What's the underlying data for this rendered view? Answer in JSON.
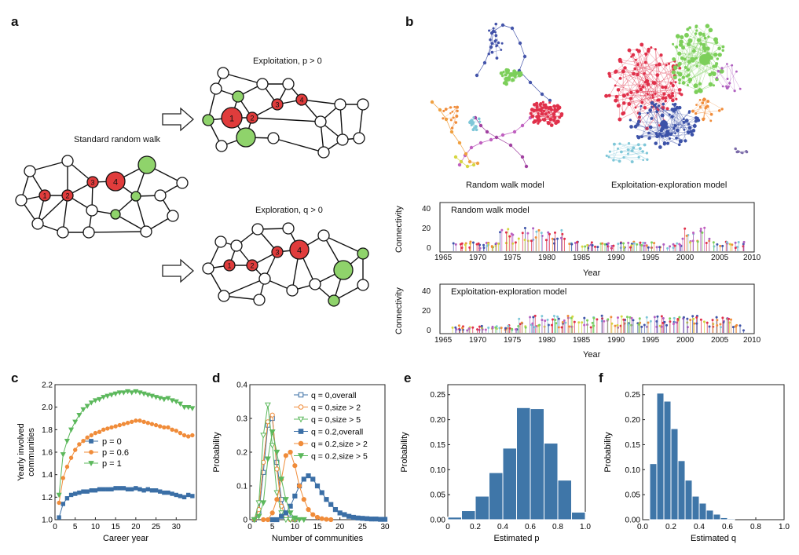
{
  "colors": {
    "red": "#e03c3c",
    "green": "#8fd36b",
    "blue": "#3b6fa6",
    "orange": "#f08c3a",
    "lightgreen": "#5cb85c"
  },
  "panel_a": {
    "letter": "a",
    "standard_label": "Standard random walk",
    "exploitation_label": "Exploitation, p > 0",
    "exploration_label": "Exploration, q > 0",
    "node_numbers": [
      "1",
      "2",
      "3",
      "4"
    ]
  },
  "panel_b": {
    "letter": "b",
    "net_label_left": "Random walk model",
    "net_label_right": "Exploitation-exploration model",
    "top_plot_title": "Random walk model",
    "bottom_plot_title": "Exploitation-exploration model",
    "ylabel": "Connectivity",
    "xlabel": "Year",
    "yticks": [
      "0",
      "20",
      "40"
    ],
    "xticks": [
      "1965",
      "1970",
      "1975",
      "1980",
      "1985",
      "1990",
      "1995",
      "2000",
      "2005",
      "2010"
    ]
  },
  "chart_data": [
    {
      "panel": "c",
      "type": "line",
      "title": "",
      "xlabel": "Career year",
      "ylabel": "Yearly involved communities",
      "xlim": [
        0,
        35
      ],
      "ylim": [
        1.0,
        2.2
      ],
      "xticks": [
        "0",
        "5",
        "10",
        "15",
        "20",
        "25",
        "30"
      ],
      "yticks": [
        "1.0",
        "1.2",
        "1.4",
        "1.6",
        "1.8",
        "2.0",
        "2.2"
      ],
      "legend_position": "center-left",
      "series": [
        {
          "name": "p = 0",
          "color": "#3b6fa6",
          "marker": "square",
          "x": [
            1,
            2,
            3,
            4,
            5,
            6,
            7,
            8,
            9,
            10,
            11,
            12,
            13,
            14,
            15,
            16,
            17,
            18,
            19,
            20,
            21,
            22,
            23,
            24,
            25,
            26,
            27,
            28,
            29,
            30,
            31,
            32,
            33,
            34
          ],
          "values": [
            1.02,
            1.14,
            1.19,
            1.22,
            1.23,
            1.24,
            1.25,
            1.25,
            1.26,
            1.26,
            1.27,
            1.27,
            1.27,
            1.27,
            1.28,
            1.28,
            1.28,
            1.27,
            1.27,
            1.28,
            1.27,
            1.26,
            1.27,
            1.26,
            1.26,
            1.25,
            1.24,
            1.24,
            1.23,
            1.22,
            1.21,
            1.2,
            1.22,
            1.21
          ]
        },
        {
          "name": "p = 0.6",
          "color": "#f08c3a",
          "marker": "circle",
          "x": [
            1,
            2,
            3,
            4,
            5,
            6,
            7,
            8,
            9,
            10,
            11,
            12,
            13,
            14,
            15,
            16,
            17,
            18,
            19,
            20,
            21,
            22,
            23,
            24,
            25,
            26,
            27,
            28,
            29,
            30,
            31,
            32,
            33,
            34
          ],
          "values": [
            1.15,
            1.37,
            1.47,
            1.55,
            1.62,
            1.67,
            1.7,
            1.73,
            1.75,
            1.77,
            1.78,
            1.8,
            1.81,
            1.82,
            1.83,
            1.84,
            1.85,
            1.86,
            1.87,
            1.88,
            1.88,
            1.87,
            1.86,
            1.85,
            1.84,
            1.83,
            1.82,
            1.82,
            1.8,
            1.79,
            1.77,
            1.75,
            1.74,
            1.75
          ]
        },
        {
          "name": "p = 1",
          "color": "#5cb85c",
          "marker": "triangle-down",
          "x": [
            1,
            2,
            3,
            4,
            5,
            6,
            7,
            8,
            9,
            10,
            11,
            12,
            13,
            14,
            15,
            16,
            17,
            18,
            19,
            20,
            21,
            22,
            23,
            24,
            25,
            26,
            27,
            28,
            29,
            30,
            31,
            32,
            33,
            34
          ],
          "values": [
            1.22,
            1.58,
            1.7,
            1.8,
            1.87,
            1.93,
            1.98,
            2.01,
            2.04,
            2.06,
            2.07,
            2.09,
            2.1,
            2.11,
            2.12,
            2.13,
            2.13,
            2.14,
            2.13,
            2.14,
            2.13,
            2.12,
            2.11,
            2.1,
            2.09,
            2.08,
            2.07,
            2.08,
            2.06,
            2.05,
            2.03,
            2.0,
            2.0,
            1.99
          ]
        }
      ]
    },
    {
      "panel": "d",
      "type": "line",
      "title": "",
      "xlabel": "Number of communities",
      "ylabel": "Probability",
      "xlim": [
        0,
        30
      ],
      "ylim": [
        0,
        0.4
      ],
      "xticks": [
        "0",
        "5",
        "10",
        "15",
        "20",
        "25",
        "30"
      ],
      "yticks": [
        "0",
        "0.1",
        "0.2",
        "0.3",
        "0.4"
      ],
      "legend_position": "top-right",
      "series": [
        {
          "name": "q = 0,overall",
          "color": "#3b6fa6",
          "marker": "open-square",
          "x": [
            1,
            2,
            3,
            4,
            5,
            6,
            7,
            8,
            9,
            10
          ],
          "values": [
            0.0,
            0.02,
            0.14,
            0.28,
            0.3,
            0.17,
            0.06,
            0.02,
            0.005,
            0.0
          ]
        },
        {
          "name": "q = 0,size > 2",
          "color": "#f08c3a",
          "marker": "open-circle",
          "x": [
            1,
            2,
            3,
            4,
            5,
            6,
            7,
            8,
            9,
            10
          ],
          "values": [
            0.0,
            0.03,
            0.17,
            0.29,
            0.31,
            0.15,
            0.04,
            0.01,
            0.0,
            0.0
          ]
        },
        {
          "name": "q = 0,size > 5",
          "color": "#5cb85c",
          "marker": "open-triangle-down",
          "x": [
            1,
            2,
            3,
            4,
            5,
            6,
            7,
            8,
            9,
            10
          ],
          "values": [
            0.0,
            0.05,
            0.25,
            0.34,
            0.22,
            0.08,
            0.02,
            0.0,
            0.0,
            0.0
          ]
        },
        {
          "name": "q = 0.2,overall",
          "color": "#3b6fa6",
          "marker": "square",
          "x": [
            5,
            6,
            7,
            8,
            9,
            10,
            11,
            12,
            13,
            14,
            15,
            16,
            17,
            18,
            19,
            20,
            21,
            22,
            23,
            24,
            25,
            26,
            27,
            28,
            29,
            30
          ],
          "values": [
            0.0,
            0.0,
            0.01,
            0.02,
            0.04,
            0.07,
            0.1,
            0.12,
            0.13,
            0.12,
            0.1,
            0.08,
            0.06,
            0.045,
            0.03,
            0.02,
            0.015,
            0.01,
            0.007,
            0.005,
            0.004,
            0.003,
            0.002,
            0.002,
            0.001,
            0.001
          ]
        },
        {
          "name": "q = 0.2,size > 2",
          "color": "#f08c3a",
          "marker": "circle",
          "x": [
            3,
            4,
            5,
            6,
            7,
            8,
            9,
            10,
            11,
            12,
            13,
            14,
            15,
            16,
            17,
            18
          ],
          "values": [
            0.0,
            0.0,
            0.02,
            0.06,
            0.12,
            0.19,
            0.2,
            0.16,
            0.1,
            0.06,
            0.03,
            0.015,
            0.007,
            0.003,
            0.001,
            0.0
          ]
        },
        {
          "name": "q = 0.2,size > 5",
          "color": "#5cb85c",
          "marker": "triangle-down",
          "x": [
            1,
            2,
            3,
            4,
            5,
            6,
            7,
            8,
            9,
            10,
            11,
            12
          ],
          "values": [
            0.0,
            0.01,
            0.05,
            0.18,
            0.26,
            0.2,
            0.12,
            0.06,
            0.02,
            0.005,
            0.0,
            0.0
          ]
        }
      ]
    },
    {
      "panel": "e",
      "type": "bar",
      "title": "",
      "xlabel": "Estimated p",
      "ylabel": "Probability",
      "xlim": [
        0,
        1.0
      ],
      "ylim": [
        0,
        0.27
      ],
      "xticks": [
        "0",
        "0.2",
        "0.4",
        "0.6",
        "0.8",
        "1.0"
      ],
      "yticks": [
        "0.00",
        "0.05",
        "0.10",
        "0.15",
        "0.20",
        "0.25"
      ],
      "bin_width": 0.1,
      "categories": [
        0.05,
        0.15,
        0.25,
        0.35,
        0.45,
        0.55,
        0.65,
        0.75,
        0.85,
        0.95
      ],
      "values": [
        0.005,
        0.018,
        0.047,
        0.094,
        0.143,
        0.224,
        0.222,
        0.153,
        0.079,
        0.015
      ]
    },
    {
      "panel": "f",
      "type": "bar",
      "title": "",
      "xlabel": "Estimated q",
      "ylabel": "Probability",
      "xlim": [
        0,
        1.0
      ],
      "ylim": [
        0,
        0.27
      ],
      "xticks": [
        "0.0",
        "0.2",
        "0.4",
        "0.6",
        "0.8",
        "1.0"
      ],
      "yticks": [
        "0.00",
        "0.05",
        "0.10",
        "0.15",
        "0.20",
        "0.25"
      ],
      "bin_width": 0.05,
      "categories": [
        0.025,
        0.075,
        0.125,
        0.175,
        0.225,
        0.275,
        0.325,
        0.375,
        0.425,
        0.475,
        0.525,
        0.575,
        0.625,
        0.675
      ],
      "values": [
        0.0,
        0.112,
        0.253,
        0.237,
        0.182,
        0.118,
        0.079,
        0.047,
        0.033,
        0.019,
        0.011,
        0.004,
        0.002,
        0.0
      ]
    }
  ]
}
